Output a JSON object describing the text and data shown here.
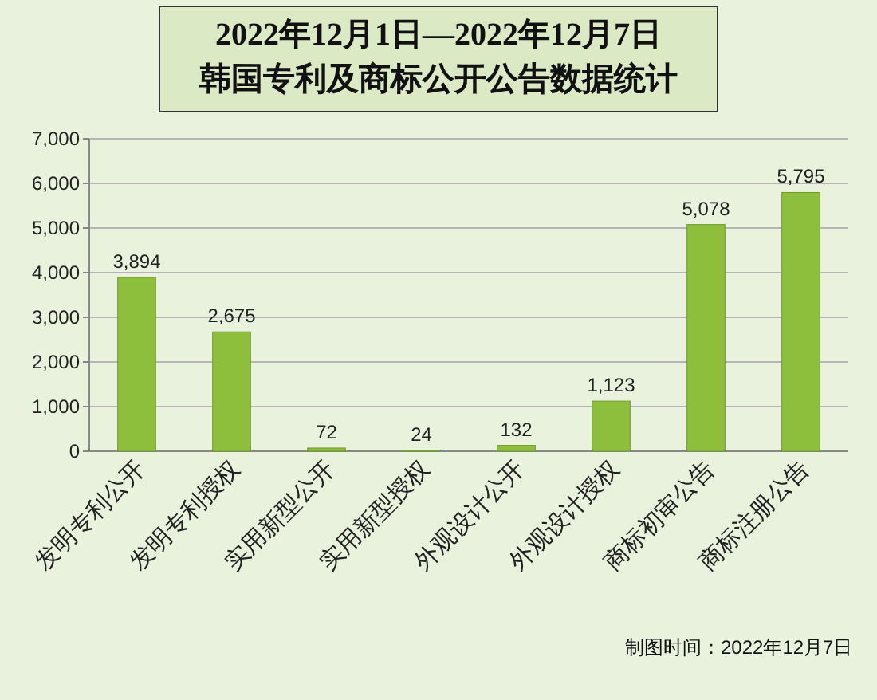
{
  "chart_data": {
    "type": "bar",
    "title": "2022年12月1日—2022年12月7日",
    "subtitle": "韩国专利及商标公开公告数据统计",
    "categories": [
      "发明专利公开",
      "发明专利授权",
      "实用新型公开",
      "实用新型授权",
      "外观设计公开",
      "外观设计授权",
      "商标初审公告",
      "商标注册公告"
    ],
    "values": [
      3894,
      2675,
      72,
      24,
      132,
      1123,
      5078,
      5795
    ],
    "value_labels": [
      "3,894",
      "2,675",
      "72",
      "24",
      "132",
      "1,123",
      "5,078",
      "5,795"
    ],
    "color": "#8dbf3c",
    "ylim": [
      0,
      7000
    ],
    "yticks": [
      0,
      {
        "value": 1000,
        "label": "1,000"
      },
      {
        "value": 2000,
        "label": "2,000"
      },
      {
        "value": 3000,
        "label": "3,000"
      },
      {
        "value": 4000,
        "label": "4,000"
      },
      {
        "value": 5000,
        "label": "5,000"
      },
      {
        "value": 6000,
        "label": "6,000"
      },
      {
        "value": 7000,
        "label": "7,000"
      }
    ],
    "grid": "y",
    "annotations": [
      "制图时间：2022年12月7日"
    ]
  }
}
